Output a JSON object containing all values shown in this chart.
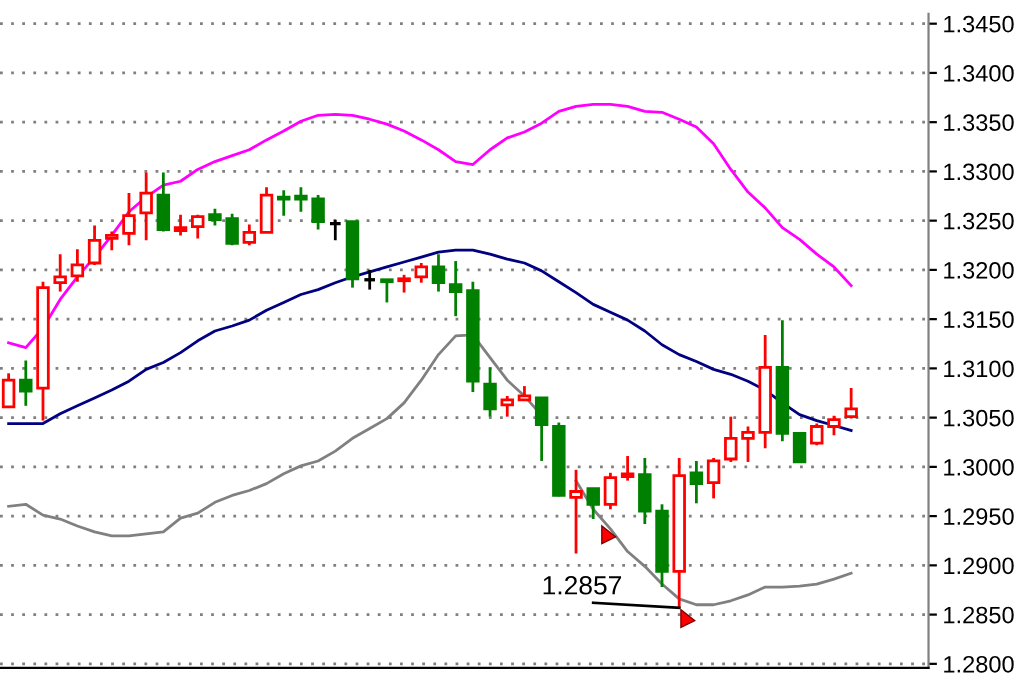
{
  "chart_data": {
    "type": "candlestick",
    "categories": [
      null,
      null,
      null,
      null,
      null,
      null,
      null,
      null,
      null,
      null,
      null,
      null,
      null,
      null,
      null,
      null,
      null,
      null,
      null,
      null,
      null,
      null,
      null,
      null,
      null,
      null,
      null,
      null,
      null,
      null,
      null,
      null,
      null,
      null,
      null,
      null,
      null,
      null,
      null,
      null,
      null,
      null,
      null,
      null,
      null,
      null,
      null,
      null,
      null,
      null,
      null,
      null,
      null,
      null
    ],
    "ohlc": [
      [
        1.3061,
        1.3095,
        1.3061,
        1.3088
      ],
      [
        1.3088,
        1.3108,
        1.3062,
        1.3077
      ],
      [
        1.308,
        1.3188,
        1.3047,
        1.3182
      ],
      [
        1.3187,
        1.3216,
        1.3178,
        1.3193
      ],
      [
        1.3194,
        1.3221,
        1.3188,
        1.3205
      ],
      [
        1.3207,
        1.3245,
        1.3205,
        1.323
      ],
      [
        1.3232,
        1.3239,
        1.322,
        1.3235
      ],
      [
        1.3237,
        1.3278,
        1.3225,
        1.3255
      ],
      [
        1.3258,
        1.3299,
        1.323,
        1.3278
      ],
      [
        1.3276,
        1.3299,
        1.3239,
        1.3241
      ],
      [
        1.324,
        1.3256,
        1.3235,
        1.3243
      ],
      [
        1.3244,
        1.3256,
        1.3232,
        1.3254
      ],
      [
        1.3256,
        1.3262,
        1.3245,
        1.3251
      ],
      [
        1.3252,
        1.3257,
        1.3225,
        1.3227
      ],
      [
        1.3228,
        1.3246,
        1.3225,
        1.3238
      ],
      [
        1.3238,
        1.3284,
        1.3238,
        1.3276
      ],
      [
        1.3274,
        1.3281,
        1.3255,
        1.3272
      ],
      [
        1.3275,
        1.3284,
        1.3259,
        1.3272
      ],
      [
        1.3272,
        1.3276,
        1.3241,
        1.3249
      ],
      [
        1.3247,
        1.3251,
        1.323,
        1.3247
      ],
      [
        1.3249,
        1.3249,
        1.3182,
        1.3191
      ],
      [
        1.319,
        1.32,
        1.318,
        1.319
      ],
      [
        1.319,
        1.319,
        1.3167,
        1.3188
      ],
      [
        1.3189,
        1.3195,
        1.3177,
        1.3191
      ],
      [
        1.3193,
        1.3207,
        1.3187,
        1.3203
      ],
      [
        1.3203,
        1.3216,
        1.3178,
        1.3187
      ],
      [
        1.3185,
        1.3209,
        1.3153,
        1.3178
      ],
      [
        1.3179,
        1.3188,
        1.3076,
        1.3087
      ],
      [
        1.3084,
        1.3101,
        1.3051,
        1.3059
      ],
      [
        1.3063,
        1.3072,
        1.3051,
        1.3068
      ],
      [
        1.3068,
        1.3082,
        1.3067,
        1.3072
      ],
      [
        1.307,
        1.307,
        1.3006,
        1.3043
      ],
      [
        1.3041,
        1.3045,
        1.297,
        1.2971
      ],
      [
        1.2969,
        1.2997,
        1.2912,
        1.2975
      ],
      [
        1.2978,
        1.2978,
        1.2947,
        1.2962
      ],
      [
        1.2962,
        1.2994,
        1.2957,
        1.2989
      ],
      [
        1.299,
        1.3011,
        1.2986,
        1.2993
      ],
      [
        1.2992,
        1.3009,
        1.2942,
        1.2955
      ],
      [
        1.2955,
        1.2962,
        1.2878,
        1.2894
      ],
      [
        1.2894,
        1.3009,
        1.2857,
        1.2991
      ],
      [
        1.2994,
        1.3006,
        1.2963,
        1.2983
      ],
      [
        1.2984,
        1.3009,
        1.2968,
        1.3006
      ],
      [
        1.3008,
        1.3051,
        1.3005,
        1.3029
      ],
      [
        1.3029,
        1.3041,
        1.3005,
        1.3035
      ],
      [
        1.3035,
        1.3134,
        1.3019,
        1.3101
      ],
      [
        1.3101,
        1.3149,
        1.3026,
        1.3034
      ],
      [
        1.3034,
        1.3034,
        1.3005,
        1.3005
      ],
      [
        1.3024,
        1.3044,
        1.3022,
        1.3041
      ],
      [
        1.3041,
        1.3052,
        1.3032,
        1.3048
      ],
      [
        1.3051,
        1.308,
        1.3049,
        1.3059
      ],
      null,
      null,
      null,
      null
    ],
    "colors": [
      "#ff0000",
      "#008000",
      "#ff0000",
      "#ff0000",
      "#ff0000",
      "#ff0000",
      "#ff0000",
      "#ff0000",
      "#ff0000",
      "#008000",
      "#ff0000",
      "#ff0000",
      "#008000",
      "#008000",
      "#ff0000",
      "#ff0000",
      "#008000",
      "#008000",
      "#008000",
      "#000000",
      "#008000",
      "#000000",
      "#008000",
      "#ff0000",
      "#ff0000",
      "#008000",
      "#008000",
      "#008000",
      "#008000",
      "#ff0000",
      "#ff0000",
      "#008000",
      "#008000",
      "#ff0000",
      "#008000",
      "#ff0000",
      "#ff0000",
      "#008000",
      "#008000",
      "#ff0000",
      "#008000",
      "#ff0000",
      "#ff0000",
      "#ff0000",
      "#ff0000",
      "#008000",
      "#008000",
      "#ff0000",
      "#ff0000",
      "#ff0000",
      null,
      null,
      null,
      null
    ],
    "series": [
      {
        "type": "line",
        "color": "#ff00ff",
        "values": [
          1.3126,
          1.3121,
          1.3141,
          1.317,
          1.3193,
          1.3213,
          1.3235,
          1.3259,
          1.3274,
          1.3286,
          1.329,
          1.3302,
          1.331,
          1.3316,
          1.3322,
          1.3332,
          1.3341,
          1.3351,
          1.3357,
          1.3358,
          1.3357,
          1.3353,
          1.3348,
          1.3341,
          1.3332,
          1.3322,
          1.331,
          1.3307,
          1.3322,
          1.3334,
          1.334,
          1.3349,
          1.3361,
          1.3366,
          1.3368,
          1.3368,
          1.3366,
          1.3361,
          1.336,
          1.3353,
          1.3345,
          1.3328,
          1.3302,
          1.3279,
          1.3263,
          1.3243,
          1.3231,
          1.3216,
          1.3203,
          1.3184,
          null,
          null,
          null,
          null
        ]
      },
      {
        "type": "line",
        "color": "#000080",
        "values": [
          1.3044,
          1.3044,
          1.3044,
          1.3054,
          1.3062,
          1.307,
          1.3078,
          1.3087,
          1.3099,
          1.3106,
          1.3116,
          1.3128,
          1.3138,
          1.3143,
          1.3149,
          1.3159,
          1.3167,
          1.3175,
          1.318,
          1.3187,
          1.3193,
          1.3198,
          1.3203,
          1.3208,
          1.3213,
          1.3218,
          1.322,
          1.322,
          1.3216,
          1.3211,
          1.3207,
          1.3199,
          1.3188,
          1.3177,
          1.3165,
          1.3157,
          1.3149,
          1.3138,
          1.3124,
          1.3114,
          1.3107,
          1.3099,
          1.3094,
          1.3087,
          1.3078,
          1.3065,
          1.3053,
          1.3047,
          1.3042,
          1.3037,
          null,
          null,
          null,
          null
        ]
      },
      {
        "type": "line",
        "color": "#808080",
        "values": [
          1.296,
          1.2962,
          1.2951,
          1.2947,
          1.294,
          1.2934,
          1.293,
          1.293,
          1.2932,
          1.2934,
          1.2948,
          1.2953,
          1.2964,
          1.2971,
          1.2976,
          1.2983,
          1.2993,
          1.3001,
          1.3006,
          1.3016,
          1.3029,
          1.3039,
          1.3049,
          1.3065,
          1.3088,
          1.3114,
          1.3133,
          1.3134,
          1.3111,
          1.3088,
          1.3072,
          1.3052,
          null,
          1.2986,
          1.2957,
          1.2937,
          1.2914,
          1.2899,
          1.2881,
          1.2866,
          1.286,
          1.286,
          1.2864,
          1.287,
          1.2878,
          1.2878,
          1.2879,
          1.2881,
          1.2886,
          1.2892,
          null,
          null,
          null,
          null
        ]
      }
    ],
    "ylim": [
      1.2796,
      1.346
    ],
    "yticks": [
      {
        "value": 1.28,
        "label": "1.2800"
      },
      {
        "value": 1.285,
        "label": "1.2850"
      },
      {
        "value": 1.29,
        "label": "1.2900"
      },
      {
        "value": 1.295,
        "label": "1.2950"
      },
      {
        "value": 1.3,
        "label": "1.3000"
      },
      {
        "value": 1.305,
        "label": "1.3050"
      },
      {
        "value": 1.31,
        "label": "1.3100"
      },
      {
        "value": 1.315,
        "label": "1.3150"
      },
      {
        "value": 1.32,
        "label": "1.3200"
      },
      {
        "value": 1.325,
        "label": "1.3250"
      },
      {
        "value": 1.33,
        "label": "1.3300"
      },
      {
        "value": 1.335,
        "label": "1.3350"
      },
      {
        "value": 1.34,
        "label": "1.3400"
      },
      {
        "value": 1.345,
        "label": "1.3450"
      }
    ],
    "grid": "y",
    "tick_labels": "y",
    "annotations": [
      "1.2857"
    ]
  }
}
